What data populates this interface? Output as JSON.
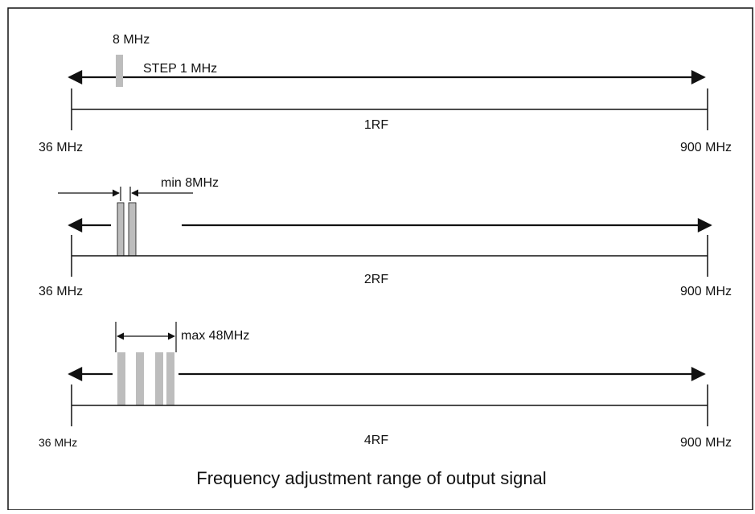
{
  "caption": "Frequency adjustment range of output signal",
  "colors": {
    "line": "#111111",
    "band": "#bdbdbd",
    "frame": "#111111",
    "background": "#ffffff"
  },
  "panels": [
    {
      "id": "1rf",
      "label": "1RF",
      "min_label": "36 MHz",
      "max_label": "900 MHz",
      "band_label": "8 MHz",
      "step_label": "STEP 1 MHz",
      "channels": 1
    },
    {
      "id": "2rf",
      "label": "2RF",
      "min_label": "36 MHz",
      "max_label": "900 MHz",
      "spacing_label": "min 8MHz",
      "channels": 2
    },
    {
      "id": "4rf",
      "label": "4RF",
      "min_label": "36 MHz",
      "max_label": "900 MHz",
      "span_label": "max 48MHz",
      "channels": 4
    }
  ]
}
